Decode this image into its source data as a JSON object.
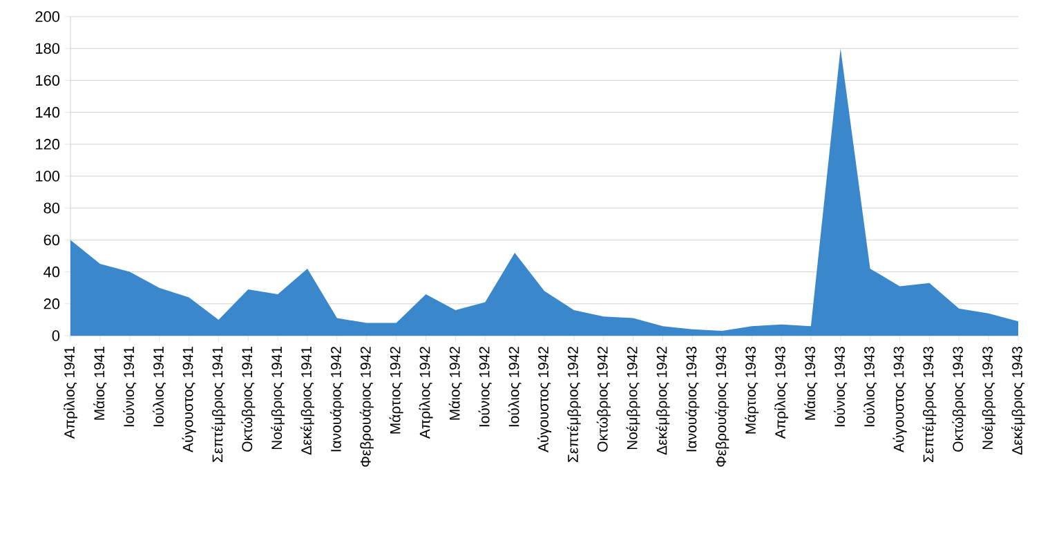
{
  "chart_data": {
    "type": "area",
    "categories": [
      "Απρίλιος 1941",
      "Μάιος 1941",
      "Ιούνιος 1941",
      "Ιούλιος 1941",
      "Αύγουστος 1941",
      "Σεπτέμβριος 1941",
      "Οκτώβριος 1941",
      "Νοέμβριος 1941",
      "Δεκέμβριος 1941",
      "Ιανουάριος 1942",
      "Φεβρουάριος 1942",
      "Μάρτιος 1942",
      "Απρίλιος 1942",
      "Μάιος 1942",
      "Ιούνιος 1942",
      "Ιούλιος 1942",
      "Αύγουστος 1942",
      "Σεπτέμβριος 1942",
      "Οκτώβριος 1942",
      "Νοέμβριος 1942",
      "Δεκέμβριος 1942",
      "Ιανουάριος 1943",
      "Φεβρουάριος 1943",
      "Μάρτιος 1943",
      "Απρίλιος 1943",
      "Μάιος 1943",
      "Ιούνιος 1943",
      "Ιούλιος 1943",
      "Αύγουστος 1943",
      "Σεπτέμβριος 1943",
      "Οκτώβριος 1943",
      "Νοέμβριος 1943",
      "Δεκέμβριος 1943"
    ],
    "values": [
      60,
      45,
      40,
      30,
      24,
      10,
      29,
      26,
      42,
      11,
      8,
      8,
      26,
      16,
      21,
      52,
      28,
      16,
      12,
      11,
      6,
      4,
      3,
      6,
      7,
      6,
      180,
      42,
      31,
      33,
      17,
      14,
      9
    ],
    "color": "#3a87cc",
    "ylim": [
      0,
      200
    ],
    "yticks": [
      0,
      20,
      40,
      60,
      80,
      100,
      120,
      140,
      160,
      180,
      200
    ],
    "grid": "y"
  }
}
